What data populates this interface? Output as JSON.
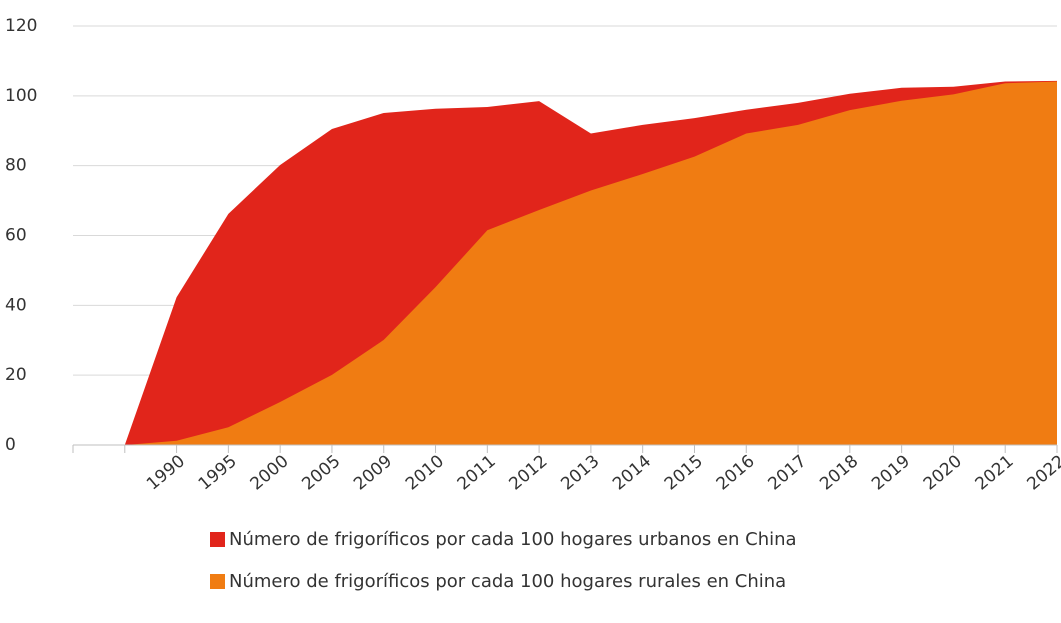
{
  "chart_data": {
    "type": "area",
    "categories": [
      null,
      "1990",
      "1995",
      "2000",
      "2005",
      "2009",
      "2010",
      "2011",
      "2012",
      "2013",
      "2014",
      "2015",
      "2016",
      "2017",
      "2018",
      "2019",
      "2020",
      "2021",
      "2022"
    ],
    "series": [
      {
        "name": "Número de frigoríficos por cada 100 hogares urbanos en China",
        "color": "#e1251b",
        "values": [
          0,
          42.3,
          66.2,
          80.2,
          90.5,
          95.1,
          96.3,
          96.8,
          98.5,
          89.2,
          91.7,
          93.6,
          96.0,
          98.0,
          100.6,
          102.3,
          102.6,
          104.1,
          104.3
        ]
      },
      {
        "name": "Número de frigoríficos por cada 100 hogares rurales en China",
        "color": "#f07c12",
        "values": [
          0,
          1.2,
          5.1,
          12.3,
          20.1,
          30.1,
          45.2,
          61.5,
          67.3,
          72.9,
          77.6,
          82.6,
          89.2,
          91.7,
          95.9,
          98.6,
          100.4,
          103.6,
          104.1
        ]
      }
    ],
    "ylim": [
      0,
      120
    ],
    "yticks": [
      0,
      20,
      40,
      60,
      80,
      100,
      120
    ],
    "grid": true
  }
}
